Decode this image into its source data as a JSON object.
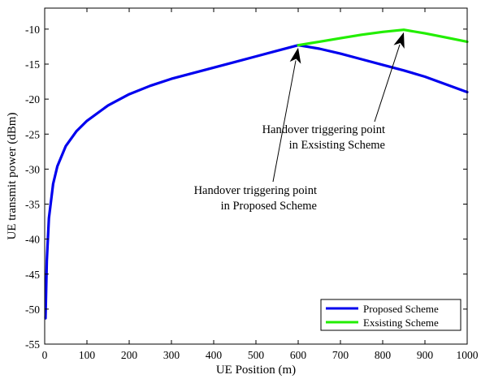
{
  "chart_data": {
    "type": "line",
    "title": "",
    "xlabel": "UE Position (m)",
    "ylabel": "UE transmit power (dBm)",
    "xlim": [
      0,
      1000
    ],
    "ylim": [
      -55,
      -7
    ],
    "xticks": [
      0,
      100,
      200,
      300,
      400,
      500,
      600,
      700,
      800,
      900,
      1000
    ],
    "yticks": [
      -10,
      -15,
      -20,
      -25,
      -30,
      -35,
      -40,
      -45,
      -50,
      -55
    ],
    "grid": false,
    "legend_position": "bottom-right",
    "series": [
      {
        "name": "Proposed Scheme",
        "color": "#0000ee",
        "x": [
          2,
          5,
          10,
          20,
          30,
          50,
          75,
          100,
          150,
          200,
          250,
          300,
          350,
          400,
          450,
          500,
          550,
          600,
          650,
          700,
          750,
          800,
          850,
          900,
          950,
          1000
        ],
        "y": [
          -51.3,
          -43.1,
          -37.0,
          -32.1,
          -29.6,
          -26.7,
          -24.6,
          -23.1,
          -20.9,
          -19.3,
          -18.1,
          -17.1,
          -16.3,
          -15.5,
          -14.7,
          -13.9,
          -13.1,
          -12.3,
          -12.8,
          -13.5,
          -14.3,
          -15.1,
          -15.9,
          -16.8,
          -17.9,
          -19.0
        ]
      },
      {
        "name": "Exsisting Scheme",
        "color": "#22ee00",
        "x": [
          600,
          650,
          700,
          750,
          800,
          850,
          900,
          950,
          1000
        ],
        "y": [
          -12.3,
          -11.8,
          -11.3,
          -10.8,
          -10.4,
          -10.1,
          -10.6,
          -11.2,
          -11.8
        ]
      }
    ],
    "annotations": [
      {
        "lines": [
          "Handover triggering point",
          "in Proposed Scheme"
        ],
        "point": [
          600,
          -12.3
        ]
      },
      {
        "lines": [
          "Handover triggering point",
          "in Exsisting Scheme"
        ],
        "point": [
          850,
          -10.1
        ]
      }
    ]
  }
}
